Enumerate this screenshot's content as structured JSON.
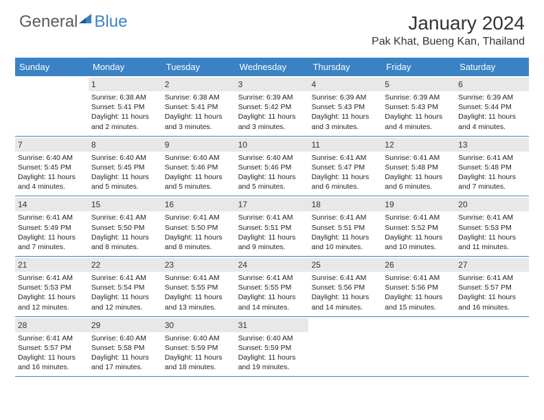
{
  "brand": {
    "part1": "General",
    "part2": "Blue"
  },
  "title": "January 2024",
  "location": "Pak Khat, Bueng Kan, Thailand",
  "colors": {
    "header_bg": "#3b82c4",
    "daynum_bg": "#e8e8e8",
    "week_border": "#3b82c4",
    "text": "#222222",
    "brand_gray": "#5a5a5a",
    "brand_blue": "#3b82c4"
  },
  "day_names": [
    "Sunday",
    "Monday",
    "Tuesday",
    "Wednesday",
    "Thursday",
    "Friday",
    "Saturday"
  ],
  "weeks": [
    [
      {
        "n": "",
        "sr": "",
        "ss": "",
        "dl": ""
      },
      {
        "n": "1",
        "sr": "Sunrise: 6:38 AM",
        "ss": "Sunset: 5:41 PM",
        "dl": "Daylight: 11 hours and 2 minutes."
      },
      {
        "n": "2",
        "sr": "Sunrise: 6:38 AM",
        "ss": "Sunset: 5:41 PM",
        "dl": "Daylight: 11 hours and 3 minutes."
      },
      {
        "n": "3",
        "sr": "Sunrise: 6:39 AM",
        "ss": "Sunset: 5:42 PM",
        "dl": "Daylight: 11 hours and 3 minutes."
      },
      {
        "n": "4",
        "sr": "Sunrise: 6:39 AM",
        "ss": "Sunset: 5:43 PM",
        "dl": "Daylight: 11 hours and 3 minutes."
      },
      {
        "n": "5",
        "sr": "Sunrise: 6:39 AM",
        "ss": "Sunset: 5:43 PM",
        "dl": "Daylight: 11 hours and 4 minutes."
      },
      {
        "n": "6",
        "sr": "Sunrise: 6:39 AM",
        "ss": "Sunset: 5:44 PM",
        "dl": "Daylight: 11 hours and 4 minutes."
      }
    ],
    [
      {
        "n": "7",
        "sr": "Sunrise: 6:40 AM",
        "ss": "Sunset: 5:45 PM",
        "dl": "Daylight: 11 hours and 4 minutes."
      },
      {
        "n": "8",
        "sr": "Sunrise: 6:40 AM",
        "ss": "Sunset: 5:45 PM",
        "dl": "Daylight: 11 hours and 5 minutes."
      },
      {
        "n": "9",
        "sr": "Sunrise: 6:40 AM",
        "ss": "Sunset: 5:46 PM",
        "dl": "Daylight: 11 hours and 5 minutes."
      },
      {
        "n": "10",
        "sr": "Sunrise: 6:40 AM",
        "ss": "Sunset: 5:46 PM",
        "dl": "Daylight: 11 hours and 5 minutes."
      },
      {
        "n": "11",
        "sr": "Sunrise: 6:41 AM",
        "ss": "Sunset: 5:47 PM",
        "dl": "Daylight: 11 hours and 6 minutes."
      },
      {
        "n": "12",
        "sr": "Sunrise: 6:41 AM",
        "ss": "Sunset: 5:48 PM",
        "dl": "Daylight: 11 hours and 6 minutes."
      },
      {
        "n": "13",
        "sr": "Sunrise: 6:41 AM",
        "ss": "Sunset: 5:48 PM",
        "dl": "Daylight: 11 hours and 7 minutes."
      }
    ],
    [
      {
        "n": "14",
        "sr": "Sunrise: 6:41 AM",
        "ss": "Sunset: 5:49 PM",
        "dl": "Daylight: 11 hours and 7 minutes."
      },
      {
        "n": "15",
        "sr": "Sunrise: 6:41 AM",
        "ss": "Sunset: 5:50 PM",
        "dl": "Daylight: 11 hours and 8 minutes."
      },
      {
        "n": "16",
        "sr": "Sunrise: 6:41 AM",
        "ss": "Sunset: 5:50 PM",
        "dl": "Daylight: 11 hours and 8 minutes."
      },
      {
        "n": "17",
        "sr": "Sunrise: 6:41 AM",
        "ss": "Sunset: 5:51 PM",
        "dl": "Daylight: 11 hours and 9 minutes."
      },
      {
        "n": "18",
        "sr": "Sunrise: 6:41 AM",
        "ss": "Sunset: 5:51 PM",
        "dl": "Daylight: 11 hours and 10 minutes."
      },
      {
        "n": "19",
        "sr": "Sunrise: 6:41 AM",
        "ss": "Sunset: 5:52 PM",
        "dl": "Daylight: 11 hours and 10 minutes."
      },
      {
        "n": "20",
        "sr": "Sunrise: 6:41 AM",
        "ss": "Sunset: 5:53 PM",
        "dl": "Daylight: 11 hours and 11 minutes."
      }
    ],
    [
      {
        "n": "21",
        "sr": "Sunrise: 6:41 AM",
        "ss": "Sunset: 5:53 PM",
        "dl": "Daylight: 11 hours and 12 minutes."
      },
      {
        "n": "22",
        "sr": "Sunrise: 6:41 AM",
        "ss": "Sunset: 5:54 PM",
        "dl": "Daylight: 11 hours and 12 minutes."
      },
      {
        "n": "23",
        "sr": "Sunrise: 6:41 AM",
        "ss": "Sunset: 5:55 PM",
        "dl": "Daylight: 11 hours and 13 minutes."
      },
      {
        "n": "24",
        "sr": "Sunrise: 6:41 AM",
        "ss": "Sunset: 5:55 PM",
        "dl": "Daylight: 11 hours and 14 minutes."
      },
      {
        "n": "25",
        "sr": "Sunrise: 6:41 AM",
        "ss": "Sunset: 5:56 PM",
        "dl": "Daylight: 11 hours and 14 minutes."
      },
      {
        "n": "26",
        "sr": "Sunrise: 6:41 AM",
        "ss": "Sunset: 5:56 PM",
        "dl": "Daylight: 11 hours and 15 minutes."
      },
      {
        "n": "27",
        "sr": "Sunrise: 6:41 AM",
        "ss": "Sunset: 5:57 PM",
        "dl": "Daylight: 11 hours and 16 minutes."
      }
    ],
    [
      {
        "n": "28",
        "sr": "Sunrise: 6:41 AM",
        "ss": "Sunset: 5:57 PM",
        "dl": "Daylight: 11 hours and 16 minutes."
      },
      {
        "n": "29",
        "sr": "Sunrise: 6:40 AM",
        "ss": "Sunset: 5:58 PM",
        "dl": "Daylight: 11 hours and 17 minutes."
      },
      {
        "n": "30",
        "sr": "Sunrise: 6:40 AM",
        "ss": "Sunset: 5:59 PM",
        "dl": "Daylight: 11 hours and 18 minutes."
      },
      {
        "n": "31",
        "sr": "Sunrise: 6:40 AM",
        "ss": "Sunset: 5:59 PM",
        "dl": "Daylight: 11 hours and 19 minutes."
      },
      {
        "n": "",
        "sr": "",
        "ss": "",
        "dl": ""
      },
      {
        "n": "",
        "sr": "",
        "ss": "",
        "dl": ""
      },
      {
        "n": "",
        "sr": "",
        "ss": "",
        "dl": ""
      }
    ]
  ]
}
